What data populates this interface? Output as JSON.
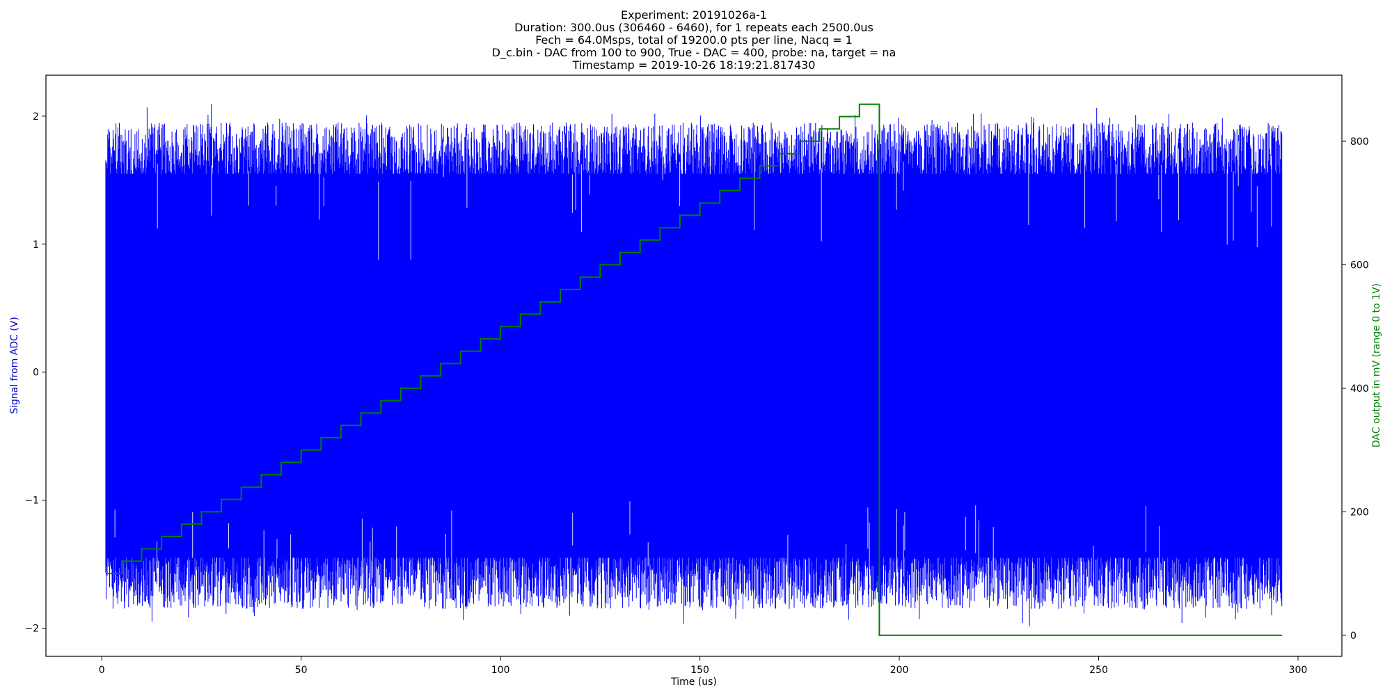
{
  "chart_data": {
    "type": "line",
    "title_lines": [
      "Experiment: 20191026a-1",
      "Duration: 300.0us (306460 - 6460), for 1 repeats each 2500.0us",
      "Fech = 64.0Msps, total of 19200.0 pts per line, Nacq = 1",
      "D_c.bin - DAC from 100 to 900, True - DAC = 400, probe: na, target = na",
      "Timestamp = 2019-10-26 18:19:21.817430"
    ],
    "xlabel": "Time (us)",
    "ylabel_left": "Signal from ADC (V)",
    "ylabel_right": "DAC output in mV (range 0 to 1V)",
    "xlim": [
      -14,
      311
    ],
    "ylim_left": [
      -2.22,
      2.32
    ],
    "ylim_right": [
      -34,
      907
    ],
    "x_ticks": [
      0,
      50,
      100,
      150,
      200,
      250,
      300
    ],
    "y_ticks_left": [
      -2,
      -1,
      0,
      1,
      2
    ],
    "y_ticks_right": [
      0,
      200,
      400,
      600,
      800
    ],
    "grid": false,
    "colors": {
      "adc": "#0000ff",
      "dac": "#008000",
      "left_label": "#0000cc",
      "right_label": "#008000",
      "axes": "#000000"
    },
    "series": [
      {
        "axis": "left",
        "color": "#0000ff",
        "x_range": [
          1,
          296
        ],
        "typical_envelope": [
          -1.85,
          1.95
        ],
        "extreme_envelope": [
          -2.0,
          2.12
        ],
        "points": 19200
      },
      {
        "axis": "right",
        "color": "#008000",
        "step": true,
        "x": [
          1,
          5,
          10,
          15,
          20,
          25,
          30,
          35,
          40,
          45,
          50,
          55,
          60,
          65,
          70,
          75,
          80,
          85,
          90,
          95,
          100,
          105,
          110,
          115,
          120,
          125,
          130,
          135,
          140,
          145,
          150,
          155,
          160,
          165,
          170,
          175,
          180,
          185,
          190,
          195,
          205,
          296
        ],
        "y": [
          100,
          120,
          140,
          160,
          180,
          200,
          220,
          240,
          260,
          280,
          300,
          320,
          340,
          360,
          380,
          400,
          420,
          440,
          460,
          480,
          500,
          520,
          540,
          560,
          580,
          600,
          620,
          640,
          660,
          680,
          700,
          720,
          740,
          760,
          780,
          800,
          820,
          840,
          860,
          0,
          0,
          0
        ]
      }
    ]
  }
}
